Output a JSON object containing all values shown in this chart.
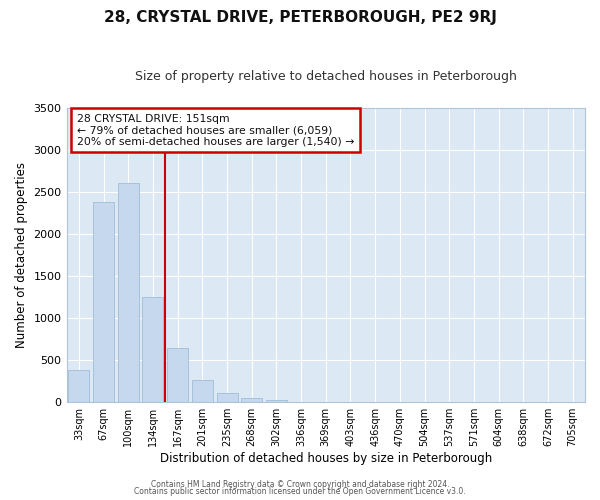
{
  "title": "28, CRYSTAL DRIVE, PETERBOROUGH, PE2 9RJ",
  "subtitle": "Size of property relative to detached houses in Peterborough",
  "xlabel": "Distribution of detached houses by size in Peterborough",
  "ylabel": "Number of detached properties",
  "bar_labels": [
    "33sqm",
    "67sqm",
    "100sqm",
    "134sqm",
    "167sqm",
    "201sqm",
    "235sqm",
    "268sqm",
    "302sqm",
    "336sqm",
    "369sqm",
    "403sqm",
    "436sqm",
    "470sqm",
    "504sqm",
    "537sqm",
    "571sqm",
    "604sqm",
    "638sqm",
    "672sqm",
    "705sqm"
  ],
  "bar_values": [
    380,
    2380,
    2600,
    1250,
    650,
    260,
    110,
    55,
    30,
    0,
    0,
    0,
    0,
    0,
    0,
    0,
    0,
    0,
    0,
    0,
    0
  ],
  "bar_color": "#c5d8ed",
  "bar_edgecolor": "#a0bdd8",
  "vline_color": "#cc0000",
  "vline_pos": 3.5,
  "ylim": [
    0,
    3500
  ],
  "yticks": [
    0,
    500,
    1000,
    1500,
    2000,
    2500,
    3000,
    3500
  ],
  "bg_color": "#dde8f5",
  "grid_color": "#ffffff",
  "annotation_title": "28 CRYSTAL DRIVE: 151sqm",
  "annotation_line1": "← 79% of detached houses are smaller (6,059)",
  "annotation_line2": "20% of semi-detached houses are larger (1,540) →",
  "annotation_box_edgecolor": "#cc0000",
  "annotation_box_facecolor": "#ffffff",
  "fig_bg_color": "#ffffff",
  "title_fontsize": 11,
  "subtitle_fontsize": 9,
  "footer1": "Contains HM Land Registry data © Crown copyright and database right 2024.",
  "footer2": "Contains public sector information licensed under the Open Government Licence v3.0."
}
